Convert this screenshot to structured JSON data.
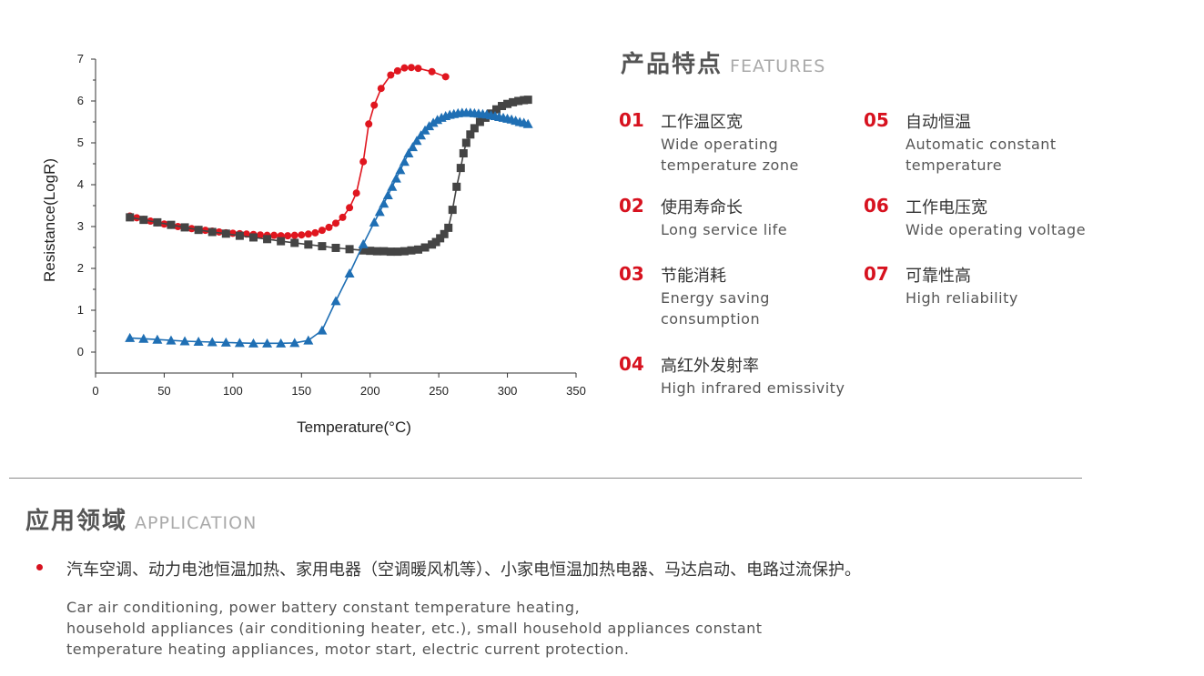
{
  "chart_data": {
    "type": "line",
    "xlabel": "Temperature(°C)",
    "ylabel": "Resistance(LogR)",
    "xlim": [
      0,
      350
    ],
    "ylim": [
      -0.5,
      7
    ],
    "xticks": [
      "0",
      "50",
      "100",
      "150",
      "200",
      "250",
      "300",
      "350"
    ],
    "yticks": [
      "0",
      "1",
      "2",
      "3",
      "4",
      "5",
      "6",
      "7"
    ],
    "grid": false,
    "series": [
      {
        "marker": "circle",
        "color": "#e0161f",
        "x": [
          25,
          30,
          35,
          40,
          45,
          50,
          55,
          60,
          65,
          70,
          75,
          80,
          85,
          90,
          95,
          100,
          105,
          110,
          115,
          120,
          125,
          130,
          135,
          140,
          145,
          150,
          155,
          160,
          165,
          170,
          175,
          180,
          185,
          190,
          195,
          199,
          203,
          208,
          215,
          220,
          225,
          230,
          235,
          245,
          255
        ],
        "values": [
          3.25,
          3.21,
          3.17,
          3.13,
          3.09,
          3.06,
          3.03,
          3.0,
          2.98,
          2.95,
          2.93,
          2.91,
          2.89,
          2.87,
          2.85,
          2.84,
          2.83,
          2.82,
          2.81,
          2.8,
          2.79,
          2.79,
          2.78,
          2.78,
          2.79,
          2.8,
          2.82,
          2.85,
          2.91,
          2.98,
          3.08,
          3.22,
          3.45,
          3.8,
          4.55,
          5.45,
          5.9,
          6.3,
          6.62,
          6.72,
          6.79,
          6.8,
          6.78,
          6.7,
          6.58
        ]
      },
      {
        "marker": "square",
        "color": "#444444",
        "x": [
          25,
          35,
          45,
          55,
          65,
          75,
          85,
          95,
          105,
          115,
          125,
          135,
          145,
          155,
          165,
          175,
          185,
          195,
          200,
          205,
          210,
          215,
          220,
          225,
          230,
          235,
          240,
          245,
          248,
          251,
          254,
          257,
          260,
          263,
          266,
          268,
          270,
          273,
          276,
          280,
          284,
          288,
          292,
          296,
          300,
          304,
          308,
          312,
          315
        ],
        "values": [
          3.22,
          3.16,
          3.1,
          3.04,
          2.98,
          2.92,
          2.87,
          2.83,
          2.78,
          2.74,
          2.7,
          2.65,
          2.61,
          2.57,
          2.53,
          2.49,
          2.46,
          2.43,
          2.42,
          2.41,
          2.41,
          2.4,
          2.4,
          2.41,
          2.43,
          2.45,
          2.5,
          2.57,
          2.63,
          2.72,
          2.82,
          2.97,
          3.4,
          3.95,
          4.4,
          4.75,
          5.0,
          5.2,
          5.35,
          5.5,
          5.6,
          5.7,
          5.8,
          5.88,
          5.93,
          5.97,
          6.0,
          6.02,
          6.03
        ]
      },
      {
        "marker": "triangle",
        "color": "#1f6fb4",
        "x": [
          25,
          35,
          45,
          55,
          65,
          75,
          85,
          95,
          105,
          115,
          125,
          135,
          145,
          155,
          165,
          175,
          185,
          195,
          203,
          207,
          210,
          213,
          216,
          219,
          222,
          225,
          228,
          231,
          234,
          237,
          240,
          243,
          246,
          249,
          252,
          255,
          258,
          261,
          264,
          267,
          270,
          273,
          276,
          279,
          282,
          285,
          288,
          291,
          294,
          297,
          300,
          303,
          306,
          309,
          312,
          315
        ],
        "values": [
          0.34,
          0.32,
          0.3,
          0.28,
          0.26,
          0.25,
          0.24,
          0.23,
          0.22,
          0.21,
          0.21,
          0.21,
          0.22,
          0.28,
          0.52,
          1.22,
          1.88,
          2.58,
          3.1,
          3.35,
          3.55,
          3.75,
          3.95,
          4.15,
          4.35,
          4.55,
          4.75,
          4.9,
          5.05,
          5.18,
          5.3,
          5.4,
          5.48,
          5.55,
          5.6,
          5.64,
          5.67,
          5.69,
          5.71,
          5.72,
          5.72,
          5.72,
          5.71,
          5.7,
          5.69,
          5.68,
          5.66,
          5.64,
          5.62,
          5.6,
          5.58,
          5.56,
          5.53,
          5.5,
          5.48,
          5.45
        ]
      }
    ]
  },
  "features": {
    "title_zh": "产品特点",
    "title_en": "FEATURES",
    "items": [
      {
        "num": "01",
        "title": "工作温区宽",
        "desc": [
          "Wide operating",
          "temperature zone"
        ]
      },
      {
        "num": "02",
        "title": "使用寿命长",
        "desc": [
          "Long service life"
        ]
      },
      {
        "num": "03",
        "title": "节能消耗",
        "desc": [
          "Energy saving",
          "consumption"
        ]
      },
      {
        "num": "04",
        "title": "高红外发射率",
        "desc": [
          "High infrared emissivity"
        ]
      },
      {
        "num": "05",
        "title": "自动恒温",
        "desc": [
          "Automatic constant",
          "temperature"
        ]
      },
      {
        "num": "06",
        "title": "工作电压宽",
        "desc": [
          "Wide operating voltage"
        ]
      },
      {
        "num": "07",
        "title": "可靠性高",
        "desc": [
          "High reliability"
        ]
      }
    ]
  },
  "application": {
    "title_zh": "应用领域",
    "title_en": "APPLICATION",
    "text_zh": "汽车空调、动力电池恒温加热、家用电器（空调暖风机等）、小家电恒温加热电器、马达启动、电路过流保护。",
    "text_en": [
      "Car air conditioning, power battery constant temperature heating,",
      "household appliances (air conditioning heater, etc.), small household appliances constant",
      "temperature heating appliances, motor start, electric current protection."
    ]
  }
}
